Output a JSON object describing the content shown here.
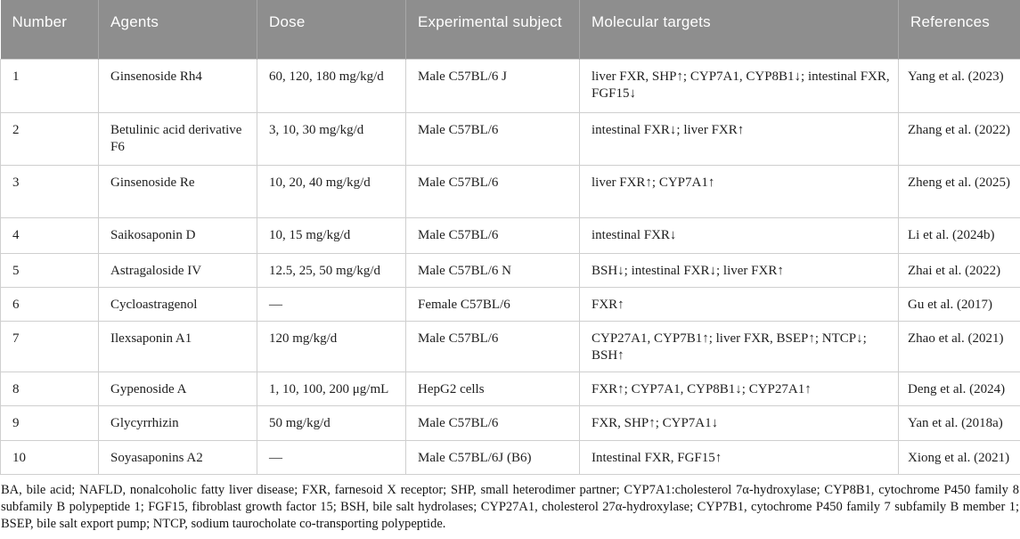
{
  "colors": {
    "header_bg": "#8e8e8e",
    "header_text": "#ffffff",
    "border": "#cfcfcf",
    "body_text": "#1e1e1e"
  },
  "table": {
    "columns": [
      {
        "key": "number",
        "label": "Number"
      },
      {
        "key": "agents",
        "label": "Agents"
      },
      {
        "key": "dose",
        "label": "Dose"
      },
      {
        "key": "subject",
        "label": "Experimental subject"
      },
      {
        "key": "targets",
        "label": "Molecular targets"
      },
      {
        "key": "references",
        "label": "References"
      }
    ],
    "rows": [
      {
        "number": "1",
        "agents": "Ginsenoside Rh4",
        "dose": "60, 120, 180 mg/kg/d",
        "subject": "Male C57BL/6 J",
        "targets": "liver FXR, SHP↑; CYP7A1, CYP8B1↓; intestinal FXR, FGF15↓",
        "references": "Yang et al. (2023)"
      },
      {
        "number": "2",
        "agents": "Betulinic acid derivative F6",
        "dose": "3, 10, 30 mg/kg/d",
        "subject": "Male C57BL/6",
        "targets": "intestinal FXR↓; liver FXR↑",
        "references": "Zhang et al. (2022)"
      },
      {
        "number": "3",
        "agents": "Ginsenoside Re",
        "dose": "10, 20, 40 mg/kg/d",
        "subject": "Male C57BL/6",
        "targets": "liver FXR↑; CYP7A1↑",
        "references": "Zheng et al. (2025)"
      },
      {
        "number": "4",
        "agents": "Saikosaponin D",
        "dose": "10, 15 mg/kg/d",
        "subject": "Male C57BL/6",
        "targets": "intestinal FXR↓",
        "references": "Li et al. (2024b)"
      },
      {
        "number": "5",
        "agents": "Astragaloside IV",
        "dose": "12.5, 25, 50 mg/kg/d",
        "subject": "Male C57BL/6 N",
        "targets": "BSH↓; intestinal FXR↓; liver FXR↑",
        "references": "Zhai et al. (2022)"
      },
      {
        "number": "6",
        "agents": "Cycloastragenol",
        "dose": "—",
        "subject": "Female C57BL/6",
        "targets": "FXR↑",
        "references": "Gu et al. (2017)"
      },
      {
        "number": "7",
        "agents": "Ilexsaponin A1",
        "dose": "120 mg/kg/d",
        "subject": "Male C57BL/6",
        "targets": "CYP27A1, CYP7B1↑; liver FXR, BSEP↑; NTCP↓; BSH↑",
        "references": "Zhao et al. (2021)"
      },
      {
        "number": "8",
        "agents": "Gypenoside A",
        "dose": "1, 10, 100, 200 μg/mL",
        "subject": "HepG2 cells",
        "targets": "FXR↑; CYP7A1, CYP8B1↓; CYP27A1↑",
        "references": "Deng et al. (2024)"
      },
      {
        "number": "9",
        "agents": "Glycyrrhizin",
        "dose": "50 mg/kg/d",
        "subject": "Male C57BL/6",
        "targets": "FXR, SHP↑; CYP7A1↓",
        "references": "Yan et al. (2018a)"
      },
      {
        "number": "10",
        "agents": "Soyasaponins A2",
        "dose": "—",
        "subject": "Male C57BL/6J (B6)",
        "targets": "Intestinal FXR, FGF15↑",
        "references": "Xiong et al. (2021)"
      }
    ]
  },
  "footnote": "BA, bile acid; NAFLD, nonalcoholic fatty liver disease; FXR, farnesoid X receptor; SHP, small heterodimer partner; CYP7A1:cholesterol 7α-hydroxylase; CYP8B1, cytochrome P450 family 8 subfamily B polypeptide 1; FGF15, fibroblast growth factor 15; BSH, bile salt hydrolases; CYP27A1, cholesterol 27α-hydroxylase; CYP7B1, cytochrome P450 family 7 subfamily B member 1; BSEP, bile salt export pump; NTCP, sodium taurocholate co-transporting polypeptide."
}
